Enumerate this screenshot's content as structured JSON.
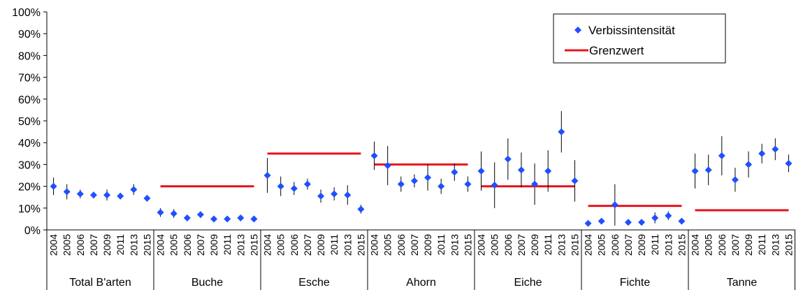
{
  "chart_data": {
    "type": "scatter",
    "title": "",
    "xlabel": "",
    "ylabel": "",
    "ylim": [
      0,
      100
    ],
    "y_ticks": [
      "0%",
      "10%",
      "20%",
      "30%",
      "40%",
      "50%",
      "60%",
      "70%",
      "80%",
      "90%",
      "100%"
    ],
    "years": [
      "2004",
      "2005",
      "2006",
      "2007",
      "2009",
      "2011",
      "2013",
      "2015"
    ],
    "legend": {
      "position": "top-right",
      "series_label": "Verbissintensität",
      "threshold_label": "Grenzwert"
    },
    "colors": {
      "marker": "#1f4fff",
      "threshold": "#e8141b",
      "error_bar": "#000000"
    },
    "groups": [
      {
        "name": "Total B'arten",
        "grenzwert": null,
        "values": [
          20,
          17.5,
          16.5,
          16,
          16,
          15.5,
          18.5,
          14.5
        ],
        "errors": [
          4,
          3.5,
          2,
          1.5,
          2.5,
          1.5,
          2.5,
          1.5
        ]
      },
      {
        "name": "Buche",
        "grenzwert": 20,
        "values": [
          8,
          7.5,
          5.5,
          7,
          5,
          5,
          5.5,
          5
        ],
        "errors": [
          2,
          2,
          1.5,
          1.5,
          1,
          1,
          1,
          1
        ]
      },
      {
        "name": "Esche",
        "grenzwert": 35,
        "values": [
          25,
          20,
          19,
          21,
          15.5,
          16.5,
          16,
          9.5
        ],
        "errors": [
          8,
          4.5,
          3,
          2.5,
          3,
          3,
          4.5,
          2
        ]
      },
      {
        "name": "Ahorn",
        "grenzwert": 30,
        "values": [
          34,
          29.5,
          21,
          22.5,
          24,
          20,
          26.5,
          21
        ],
        "errors": [
          6.5,
          9,
          3.5,
          3,
          6,
          3.5,
          4,
          3.5
        ]
      },
      {
        "name": "Eiche",
        "grenzwert": 20,
        "values": [
          27,
          20.5,
          32.5,
          27.5,
          21,
          27,
          45,
          22.5
        ],
        "errors": [
          9,
          10.5,
          9.5,
          8,
          9.5,
          9.5,
          9.5,
          9.5
        ]
      },
      {
        "name": "Fichte",
        "grenzwert": 11,
        "values": [
          3,
          4,
          11.5,
          3.5,
          3.5,
          5.5,
          6.5,
          4
        ],
        "errors": [
          1,
          1,
          9.5,
          1,
          1,
          2.5,
          2,
          1
        ]
      },
      {
        "name": "Tanne",
        "grenzwert": 9,
        "values": [
          27,
          27.5,
          34,
          23,
          30,
          35,
          37,
          30.5
        ],
        "errors": [
          8,
          7,
          9,
          5.5,
          6,
          4.5,
          5,
          4
        ]
      }
    ]
  }
}
